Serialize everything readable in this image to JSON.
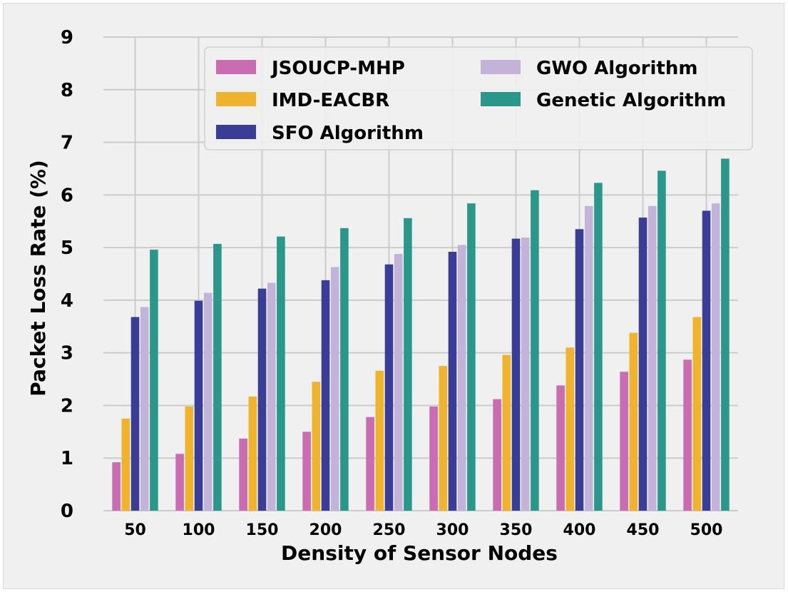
{
  "chart_data": {
    "type": "bar",
    "title": "",
    "xlabel": "Density of Sensor Nodes",
    "ylabel": "Packet Loss Rate (%)",
    "ylim": [
      0,
      9
    ],
    "yticks": [
      "0",
      "1",
      "2",
      "3",
      "4",
      "5",
      "6",
      "7",
      "8",
      "9"
    ],
    "grid": true,
    "legend_position": "top-right",
    "categories": [
      "50",
      "100",
      "150",
      "200",
      "250",
      "300",
      "350",
      "400",
      "450",
      "500"
    ],
    "series": [
      {
        "name": "JSOUCP-MHP",
        "color": "#c96cb1",
        "values": [
          0.92,
          1.08,
          1.37,
          1.5,
          1.78,
          1.98,
          2.12,
          2.38,
          2.64,
          2.87
        ]
      },
      {
        "name": "IMD-EACBR",
        "color": "#f0b32e",
        "values": [
          1.75,
          1.98,
          2.17,
          2.45,
          2.66,
          2.75,
          2.96,
          3.1,
          3.38,
          3.68
        ]
      },
      {
        "name": "SFO Algorithm",
        "color": "#3a3d96",
        "values": [
          3.68,
          3.99,
          4.22,
          4.38,
          4.68,
          4.92,
          5.17,
          5.35,
          5.57,
          5.7
        ]
      },
      {
        "name": "GWO Algorithm",
        "color": "#c3b3d9",
        "values": [
          3.87,
          4.14,
          4.33,
          4.63,
          4.88,
          5.05,
          5.19,
          5.79,
          5.79,
          5.84
        ]
      },
      {
        "name": "Genetic Algorithm",
        "color": "#2a978a",
        "values": [
          4.96,
          5.07,
          5.21,
          5.37,
          5.56,
          5.84,
          6.09,
          6.23,
          6.46,
          6.69
        ]
      }
    ]
  }
}
